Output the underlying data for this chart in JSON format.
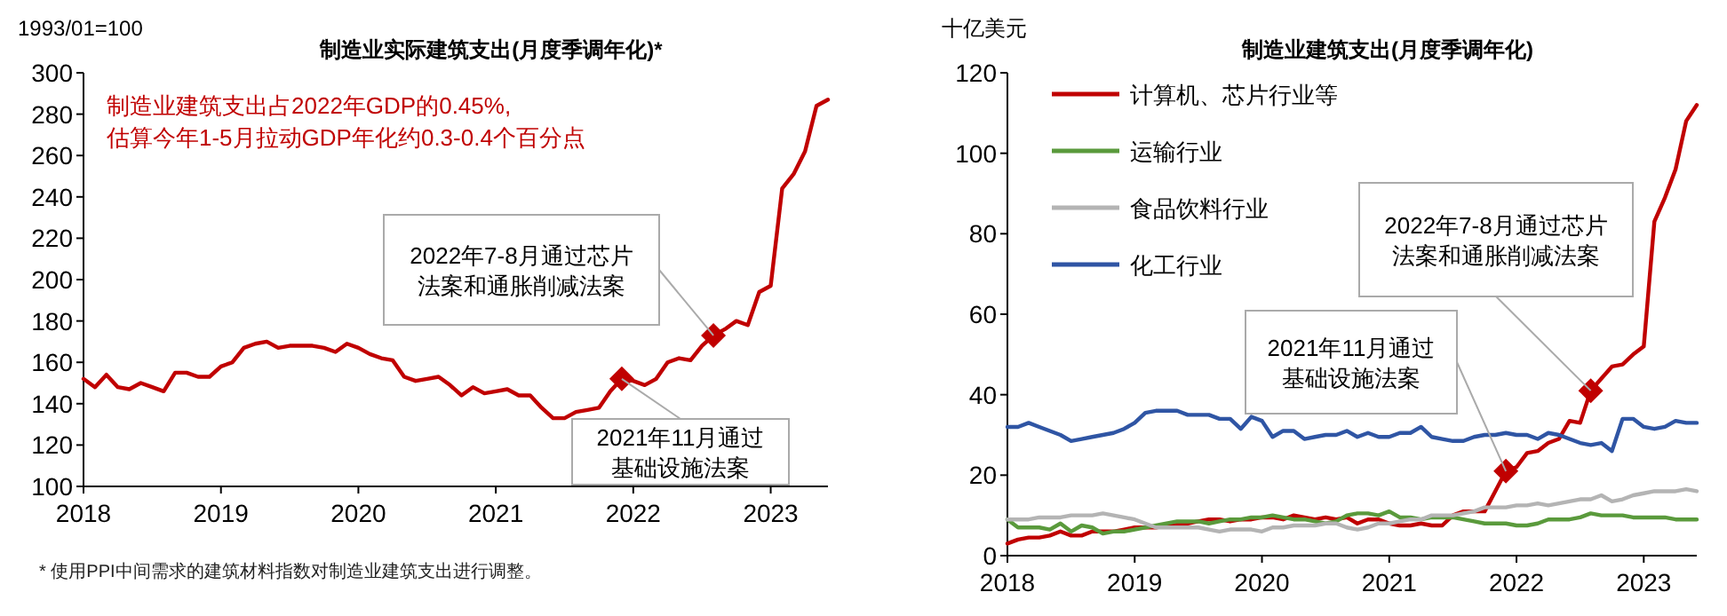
{
  "chart_data": [
    {
      "type": "line",
      "title": "制造业实际建筑支出(月度季调年化)*",
      "ylabel": "1993/01=100",
      "x": [
        "2018-01",
        "2018-02",
        "2018-03",
        "2018-04",
        "2018-05",
        "2018-06",
        "2018-07",
        "2018-08",
        "2018-09",
        "2018-10",
        "2018-11",
        "2018-12",
        "2019-01",
        "2019-02",
        "2019-03",
        "2019-04",
        "2019-05",
        "2019-06",
        "2019-07",
        "2019-08",
        "2019-09",
        "2019-10",
        "2019-11",
        "2019-12",
        "2020-01",
        "2020-02",
        "2020-03",
        "2020-04",
        "2020-05",
        "2020-06",
        "2020-07",
        "2020-08",
        "2020-09",
        "2020-10",
        "2020-11",
        "2020-12",
        "2021-01",
        "2021-02",
        "2021-03",
        "2021-04",
        "2021-05",
        "2021-06",
        "2021-07",
        "2021-08",
        "2021-09",
        "2021-10",
        "2021-11",
        "2021-12",
        "2022-01",
        "2022-02",
        "2022-03",
        "2022-04",
        "2022-05",
        "2022-06",
        "2022-07",
        "2022-08",
        "2022-09",
        "2022-10",
        "2022-11",
        "2022-12",
        "2023-01",
        "2023-02",
        "2023-03",
        "2023-04",
        "2023-05",
        "2023-06"
      ],
      "series": [
        {
          "color": "#c00000",
          "values": [
            152,
            148,
            154,
            148,
            147,
            150,
            148,
            146,
            155,
            155,
            153,
            153,
            158,
            160,
            167,
            169,
            170,
            167,
            168,
            168,
            168,
            167,
            165,
            169,
            167,
            164,
            162,
            161,
            153,
            151,
            152,
            153,
            149,
            144,
            148,
            145,
            146,
            147,
            144,
            144,
            138,
            133,
            133,
            136,
            137,
            138,
            146,
            152,
            151,
            149,
            152,
            160,
            162,
            161,
            168,
            173,
            176,
            180,
            178,
            194,
            197,
            244,
            251,
            262,
            284,
            287
          ]
        },
        {
          "type": "scatter",
          "marker": "diamond",
          "color": "#c00000",
          "x": [
            "2021-12",
            "2022-08"
          ],
          "values": [
            152,
            173
          ]
        }
      ],
      "xlim": [
        "2018-01",
        "2023-06"
      ],
      "xticks": [
        "2018",
        "2019",
        "2020",
        "2021",
        "2022",
        "2023"
      ],
      "ylim": [
        100,
        300
      ],
      "yticks": [
        100,
        120,
        140,
        160,
        180,
        200,
        220,
        240,
        260,
        280,
        300
      ],
      "grid": false,
      "legend": false,
      "annotations": [
        "制造业建筑支出占2022年GDP的0.45%,\n估算今年1-5月拉动GDP年化约0.3-0.4个百分点",
        "* 使用PPI中间需求的建筑材料指数对制造业建筑支出进行调整。",
        {
          "text": "2021年11月通过基础设施法案",
          "x": "2021-12",
          "y": 152
        },
        {
          "text": "2022年7-8月通过芯片法案和通胀削减法案",
          "x": "2022-08",
          "y": 173
        }
      ]
    },
    {
      "type": "line",
      "title": "制造业建筑支出(月度季调年化)",
      "ylabel": "十亿美元",
      "x": [
        "2018-01",
        "2018-02",
        "2018-03",
        "2018-04",
        "2018-05",
        "2018-06",
        "2018-07",
        "2018-08",
        "2018-09",
        "2018-10",
        "2018-11",
        "2018-12",
        "2019-01",
        "2019-02",
        "2019-03",
        "2019-04",
        "2019-05",
        "2019-06",
        "2019-07",
        "2019-08",
        "2019-09",
        "2019-10",
        "2019-11",
        "2019-12",
        "2020-01",
        "2020-02",
        "2020-03",
        "2020-04",
        "2020-05",
        "2020-06",
        "2020-07",
        "2020-08",
        "2020-09",
        "2020-10",
        "2020-11",
        "2020-12",
        "2021-01",
        "2021-02",
        "2021-03",
        "2021-04",
        "2021-05",
        "2021-06",
        "2021-07",
        "2021-08",
        "2021-09",
        "2021-10",
        "2021-11",
        "2021-12",
        "2022-01",
        "2022-02",
        "2022-03",
        "2022-04",
        "2022-05",
        "2022-06",
        "2022-07",
        "2022-08",
        "2022-09",
        "2022-10",
        "2022-11",
        "2022-12",
        "2023-01",
        "2023-02",
        "2023-03",
        "2023-04",
        "2023-05",
        "2023-06"
      ],
      "series": [
        {
          "name": "计算机、芯片行业等",
          "color": "#c00000",
          "values": [
            3,
            4,
            4.5,
            4.5,
            5,
            6,
            5,
            5,
            6,
            6,
            6,
            6.5,
            7,
            7,
            7,
            7.5,
            8,
            8,
            8.5,
            9,
            9,
            8.5,
            9,
            9,
            9.5,
            9.5,
            9,
            10,
            9.5,
            9,
            9.5,
            9,
            9.5,
            8,
            9,
            9,
            8,
            7.5,
            7.5,
            8,
            7.5,
            7.5,
            10,
            11,
            11,
            11,
            16,
            21,
            22,
            25.5,
            26,
            28,
            29,
            33.5,
            33,
            41,
            44,
            47,
            47.5,
            50,
            52,
            83,
            89,
            96,
            108,
            112
          ]
        },
        {
          "name": "运输行业",
          "color": "#5a9a3c",
          "values": [
            9,
            7,
            7,
            7,
            6.5,
            8,
            6,
            7.5,
            7,
            5.5,
            6,
            6,
            6.5,
            7,
            7.5,
            8,
            8.5,
            8.5,
            8.5,
            8,
            8.5,
            9,
            9,
            9.5,
            9.5,
            10,
            9.5,
            9,
            9,
            8.5,
            8,
            8.5,
            10,
            10.5,
            10.5,
            10,
            11,
            9.5,
            9.5,
            9,
            9.5,
            9.5,
            9.5,
            9,
            8.5,
            8,
            8,
            8,
            7.5,
            7.5,
            8,
            9,
            9,
            9,
            9.5,
            10.5,
            10,
            10,
            10,
            9.5,
            9.5,
            9.5,
            9.5,
            9,
            9,
            9
          ]
        },
        {
          "name": "食品饮料行业",
          "color": "#b4b4b4",
          "values": [
            9,
            9,
            9,
            9.5,
            9.5,
            9.5,
            10,
            10,
            10,
            10.5,
            10,
            9.5,
            9,
            8,
            7,
            7,
            7,
            7,
            7,
            6.5,
            6,
            6.5,
            6.5,
            6.5,
            6,
            7,
            7,
            7.5,
            7.5,
            7.5,
            8,
            8,
            7,
            6.5,
            7,
            8,
            8,
            8.5,
            9,
            9,
            10,
            10,
            10,
            10.5,
            11,
            12,
            12,
            12,
            12.5,
            12.5,
            13,
            12.5,
            13,
            13.5,
            14,
            14,
            15,
            13.5,
            14,
            15,
            15.5,
            16,
            16,
            16,
            16.5,
            16
          ]
        },
        {
          "name": "化工行业",
          "color": "#2f55a4",
          "values": [
            32,
            32,
            33,
            32,
            31,
            30,
            28.5,
            29,
            29.5,
            30,
            30.5,
            31.5,
            33,
            35.5,
            36,
            36,
            36,
            35,
            35,
            35,
            34,
            34,
            31.5,
            34.5,
            33.5,
            29.5,
            31,
            31,
            29,
            29.5,
            30,
            30,
            31,
            29.5,
            30.5,
            29.5,
            29.5,
            30.5,
            30.5,
            32,
            29.5,
            29,
            28.5,
            28.5,
            29.5,
            30,
            30,
            30.5,
            30,
            30,
            29,
            30.5,
            30,
            29,
            28,
            27.5,
            28,
            26,
            34,
            34,
            32,
            31.5,
            32,
            33.5,
            33,
            33
          ]
        },
        {
          "type": "scatter",
          "marker": "diamond",
          "color": "#c00000",
          "x": [
            "2021-12",
            "2022-08"
          ],
          "values": [
            21,
            41
          ]
        }
      ],
      "xlim": [
        "2018-01",
        "2023-06"
      ],
      "xticks": [
        "2018",
        "2019",
        "2020",
        "2021",
        "2022",
        "2023"
      ],
      "ylim": [
        0,
        120
      ],
      "yticks": [
        0,
        20,
        40,
        60,
        80,
        100,
        120
      ],
      "grid": false,
      "legend": "top left",
      "annotations": [
        {
          "text": "2021年11月通过基础设施法案",
          "x": "2021-12",
          "y": 21
        },
        {
          "text": "2022年7-8月通过芯片法案和通胀削减法案",
          "x": "2022-08",
          "y": 41
        }
      ]
    }
  ]
}
